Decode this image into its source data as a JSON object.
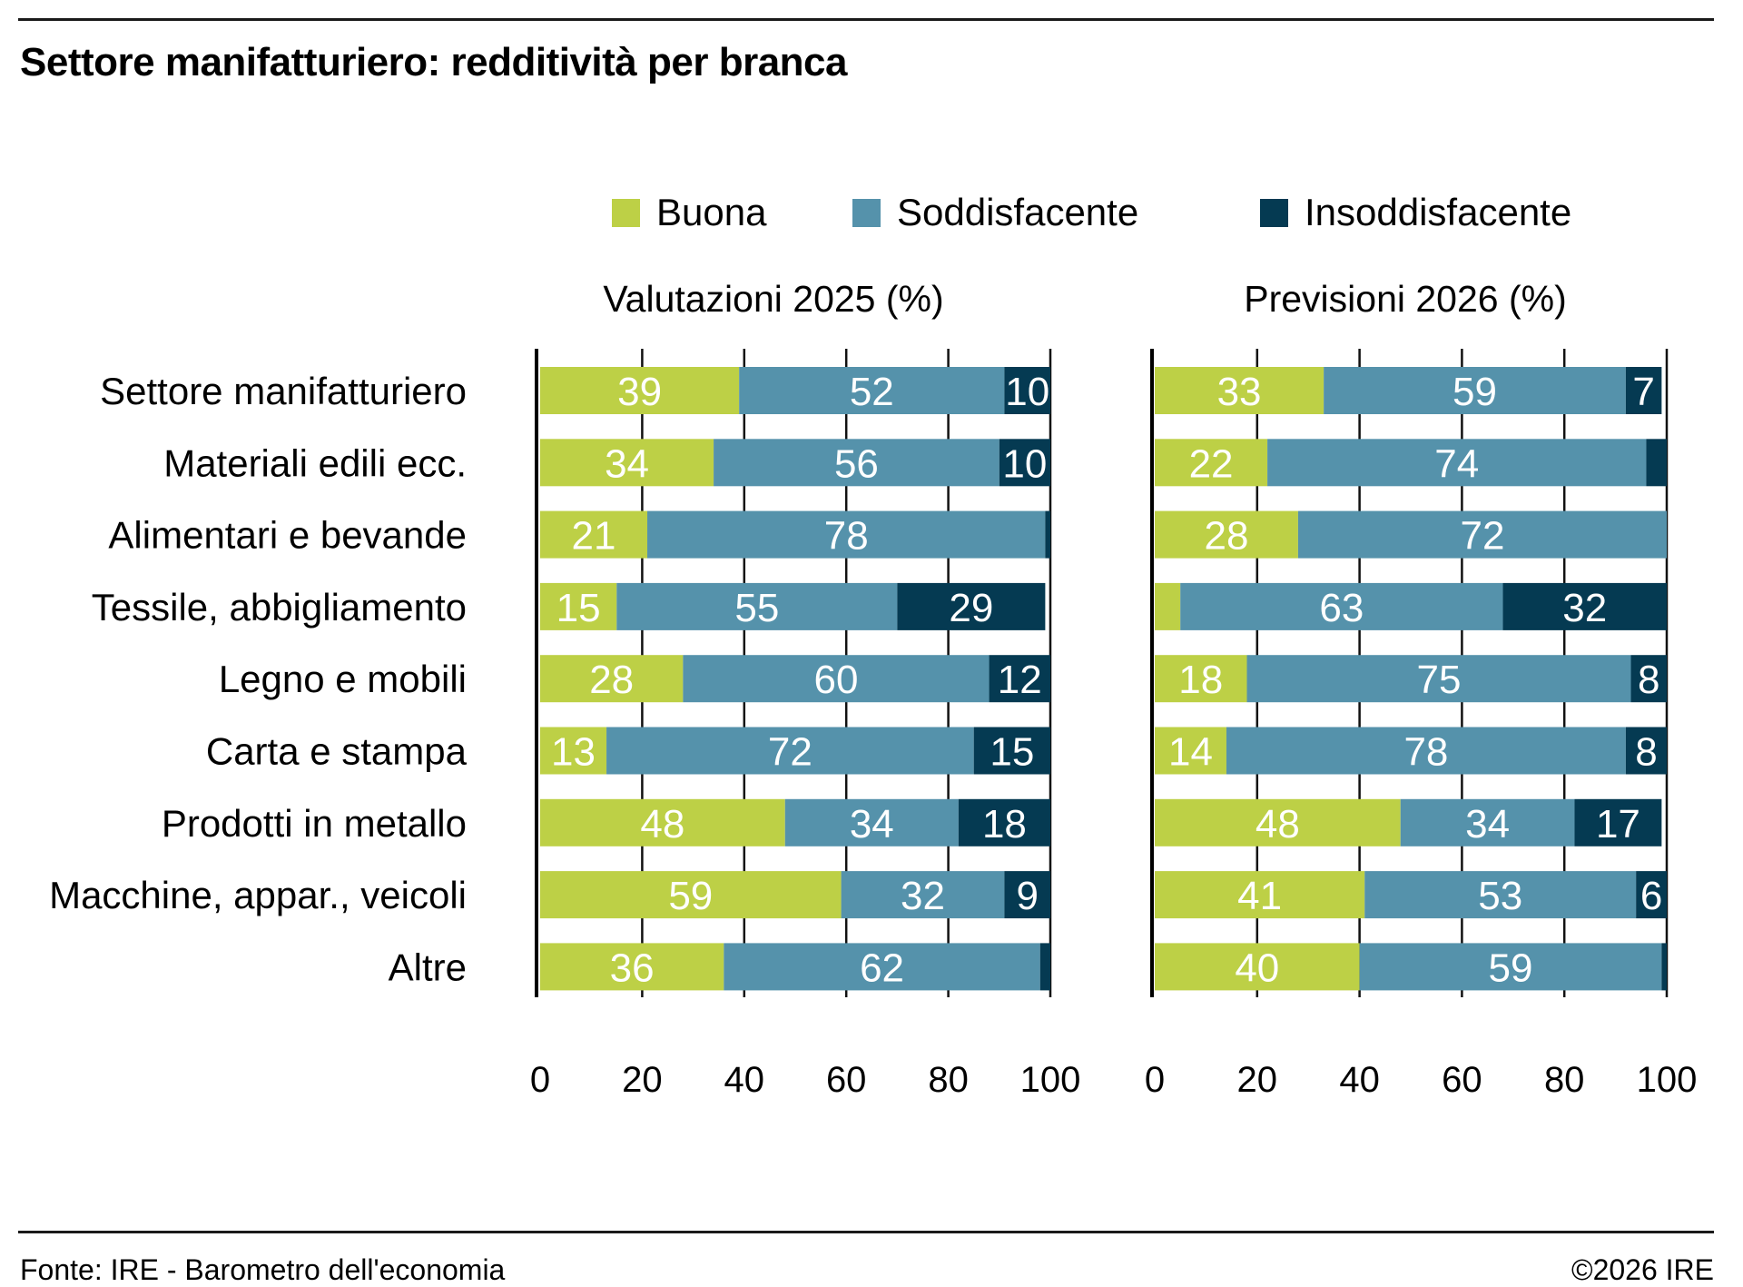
{
  "title": "Settore manifatturiero: redditività per branca",
  "legend": [
    {
      "label": "Buona",
      "color": "#bdd046"
    },
    {
      "label": "Soddisfacente",
      "color": "#5592ab"
    },
    {
      "label": "Insoddisfacente",
      "color": "#053a52"
    }
  ],
  "footer": {
    "source": "Fonte: IRE - Barometro dell'economia",
    "copyright": "©2026 IRE"
  },
  "chart_data": [
    {
      "type": "bar",
      "orientation": "horizontal",
      "stacked": true,
      "title": "Valutazioni 2025 (%)",
      "xlabel": "",
      "ylabel": "",
      "xlim": [
        0,
        100
      ],
      "xticks": [
        "0",
        "20",
        "40",
        "60",
        "80",
        "100"
      ],
      "grid": false,
      "legend": "top",
      "categories": [
        "Settore manifatturiero",
        "Materiali edili ecc.",
        "Alimentari e bevande",
        "Tessile, abbigliamento",
        "Legno e mobili",
        "Carta e stampa",
        "Prodotti in metallo",
        "Macchine, appar., veicoli",
        "Altre"
      ],
      "series": [
        {
          "name": "Buona",
          "color": "#bdd046",
          "values": [
            39,
            34,
            21,
            15,
            28,
            13,
            48,
            59,
            36
          ]
        },
        {
          "name": "Soddisfacente",
          "color": "#5592ab",
          "values": [
            52,
            56,
            78,
            55,
            60,
            72,
            34,
            32,
            62
          ]
        },
        {
          "name": "Insoddisfacente",
          "color": "#053a52",
          "values": [
            10,
            10,
            1,
            29,
            12,
            15,
            18,
            9,
            2
          ]
        }
      ],
      "labels_shown": [
        [
          "39",
          "52",
          "10"
        ],
        [
          "34",
          "56",
          "10"
        ],
        [
          "21",
          "78",
          ""
        ],
        [
          "15",
          "55",
          "29"
        ],
        [
          "28",
          "60",
          "12"
        ],
        [
          "13",
          "72",
          "15"
        ],
        [
          "48",
          "34",
          "18"
        ],
        [
          "59",
          "32",
          "9"
        ],
        [
          "36",
          "62",
          ""
        ]
      ]
    },
    {
      "type": "bar",
      "orientation": "horizontal",
      "stacked": true,
      "title": "Previsioni 2026 (%)",
      "xlabel": "",
      "ylabel": "",
      "xlim": [
        0,
        100
      ],
      "xticks": [
        "0",
        "20",
        "40",
        "60",
        "80",
        "100"
      ],
      "grid": false,
      "legend": "top",
      "categories": [
        "Settore manifatturiero",
        "Materiali edili ecc.",
        "Alimentari e bevande",
        "Tessile, abbigliamento",
        "Legno e mobili",
        "Carta e stampa",
        "Prodotti in metallo",
        "Macchine, appar., veicoli",
        "Altre"
      ],
      "series": [
        {
          "name": "Buona",
          "color": "#bdd046",
          "values": [
            33,
            22,
            28,
            5,
            18,
            14,
            48,
            41,
            40
          ]
        },
        {
          "name": "Soddisfacente",
          "color": "#5592ab",
          "values": [
            59,
            74,
            72,
            63,
            75,
            78,
            34,
            53,
            59
          ]
        },
        {
          "name": "Insoddisfacente",
          "color": "#053a52",
          "values": [
            7,
            4,
            0.5,
            32,
            8,
            8,
            17,
            6,
            1
          ]
        }
      ],
      "labels_shown": [
        [
          "33",
          "59",
          "7"
        ],
        [
          "22",
          "74",
          ""
        ],
        [
          "28",
          "72",
          ""
        ],
        [
          "",
          "63",
          "32"
        ],
        [
          "18",
          "75",
          "8"
        ],
        [
          "14",
          "78",
          "8"
        ],
        [
          "48",
          "34",
          "17"
        ],
        [
          "41",
          "53",
          "6"
        ],
        [
          "40",
          "59",
          ""
        ]
      ]
    }
  ]
}
